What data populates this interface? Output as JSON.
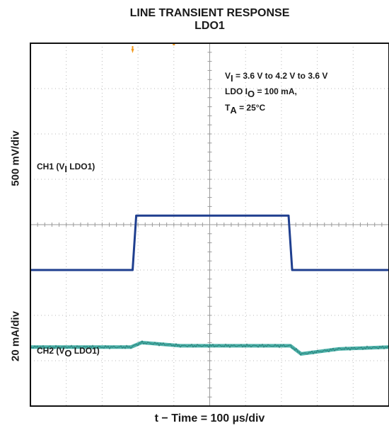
{
  "chart_data": {
    "type": "line",
    "title": "LINE TRANSIENT RESPONSE",
    "subtitle": "LDO1",
    "xlabel": "t − Time = 100 µs/div",
    "ylabels": [
      "500 mV/div",
      "20 mA/div"
    ],
    "x_divisions": 10,
    "y_divisions": 8,
    "grid": true,
    "annotations": {
      "line1": {
        "pre": "V",
        "sub": "I",
        "post": " = 3.6 V to 4.2 V to 3.6 V"
      },
      "line2": {
        "pre": "LDO I",
        "sub": "O",
        "post": " = 100 mA,"
      },
      "line3": {
        "pre": "T",
        "sub": "A",
        "post": "  = 25°C"
      }
    },
    "series": [
      {
        "name": "CH1",
        "label": {
          "pre": "CH1 (V",
          "sub": "I",
          "post": " LDO1)"
        },
        "color": "#1f3f8f",
        "x_div": [
          0,
          2.85,
          2.95,
          7.2,
          7.3,
          10
        ],
        "y_div": [
          -1,
          -1,
          0.2,
          0.2,
          -1,
          -1
        ]
      },
      {
        "name": "CH2",
        "label": {
          "pre": "CH2 (V",
          "sub": "O",
          "post": " LDO1)"
        },
        "color": "#2ea39a",
        "x_div": [
          0,
          2.8,
          3.1,
          4.2,
          7.25,
          7.55,
          8.6,
          10
        ],
        "y_div": [
          -2.7,
          -2.7,
          -2.6,
          -2.67,
          -2.67,
          -2.85,
          -2.74,
          -2.7
        ]
      }
    ],
    "markers": {
      "color": "#f29a1e"
    }
  }
}
